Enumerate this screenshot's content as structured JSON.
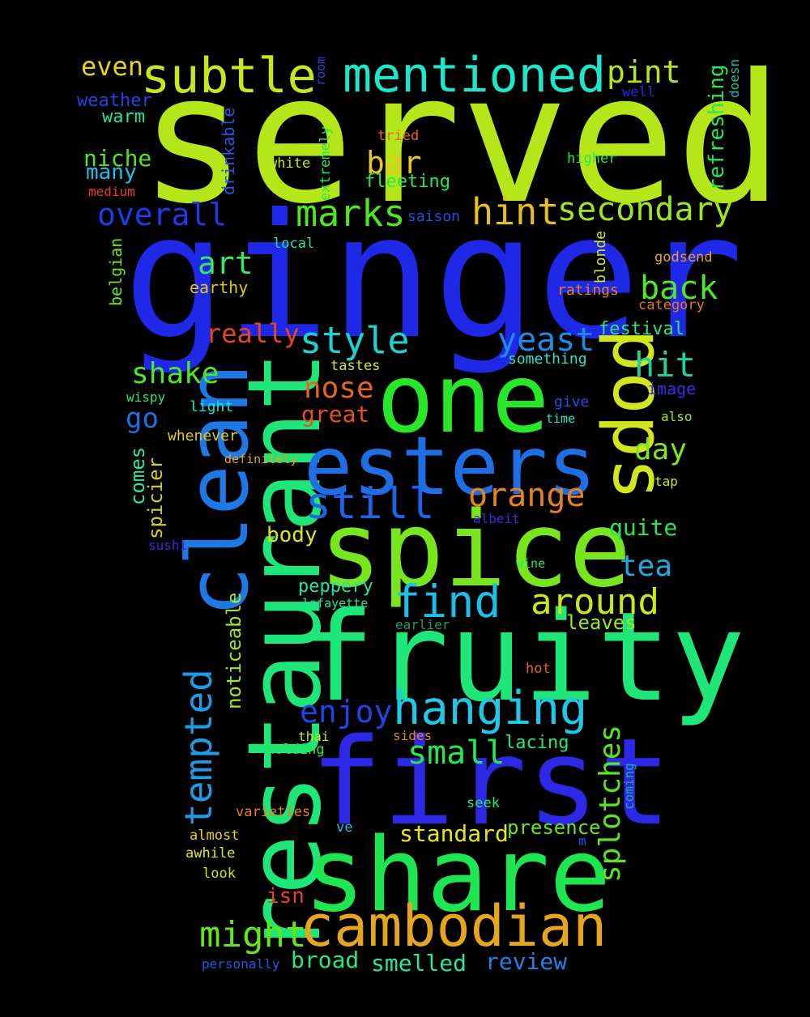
{
  "cloud": {
    "background": "#000000",
    "words": [
      {
        "text": "served",
        "color": "#b4e61a"
      },
      {
        "text": "ginger",
        "color": "#1e28e6"
      },
      {
        "text": "restaurant",
        "color": "#1ee678"
      },
      {
        "text": "first",
        "color": "#2d28e6"
      },
      {
        "text": "fruity",
        "color": "#1ee678"
      },
      {
        "text": "clean",
        "color": "#1e78e6"
      },
      {
        "text": "one",
        "color": "#28e628"
      },
      {
        "text": "spice",
        "color": "#78e61e"
      },
      {
        "text": "share",
        "color": "#1ee650"
      },
      {
        "text": "esters",
        "color": "#1e6ee6"
      },
      {
        "text": "pops",
        "color": "#d2e61e"
      },
      {
        "text": "cambodian",
        "color": "#e6a51e"
      },
      {
        "text": "mentioned",
        "color": "#1ee6c8"
      },
      {
        "text": "subtle",
        "color": "#c8e61e"
      },
      {
        "text": "hanging",
        "color": "#1ec8e6"
      },
      {
        "text": "tempted",
        "color": "#1e9be6"
      },
      {
        "text": "find",
        "color": "#1ebee6"
      },
      {
        "text": "still",
        "color": "#1e64e6"
      },
      {
        "text": "marks",
        "color": "#50e61e"
      },
      {
        "text": "hint",
        "color": "#e6be1e"
      },
      {
        "text": "secondary",
        "color": "#a0e61e"
      },
      {
        "text": "style",
        "color": "#1ed2d2"
      },
      {
        "text": "orange",
        "color": "#e6821e"
      },
      {
        "text": "around",
        "color": "#c8e61e"
      },
      {
        "text": "might",
        "color": "#64e61e"
      },
      {
        "text": "splotches",
        "color": "#5ae61e"
      },
      {
        "text": "small",
        "color": "#28e650"
      },
      {
        "text": "enjoy",
        "color": "#1e46e6"
      },
      {
        "text": "yeast",
        "color": "#1e8ce6"
      },
      {
        "text": "overall",
        "color": "#1e3ce6"
      },
      {
        "text": "shake",
        "color": "#50e628"
      },
      {
        "text": "back",
        "color": "#50e628"
      },
      {
        "text": "hit",
        "color": "#1ed2a0"
      },
      {
        "text": "nose",
        "color": "#e6641e"
      },
      {
        "text": "pint",
        "color": "#b4e61e"
      },
      {
        "text": "art",
        "color": "#3ce664"
      },
      {
        "text": "bar",
        "color": "#e6c81e"
      },
      {
        "text": "day",
        "color": "#82e61e"
      },
      {
        "text": "go",
        "color": "#1e6ee6"
      },
      {
        "text": "even",
        "color": "#e6d21e"
      },
      {
        "text": "refreshing",
        "color": "#28e650"
      },
      {
        "text": "really",
        "color": "#e6461e"
      },
      {
        "text": "tea",
        "color": "#1eaae6"
      },
      {
        "text": "standard",
        "color": "#e6e61e"
      },
      {
        "text": "review",
        "color": "#1e82e6"
      },
      {
        "text": "broad",
        "color": "#28e678"
      },
      {
        "text": "smelled",
        "color": "#28e6a0"
      },
      {
        "text": "noticeable",
        "color": "#a0e61e"
      },
      {
        "text": "spicier",
        "color": "#d2d21e"
      },
      {
        "text": "comes",
        "color": "#28e6a0"
      },
      {
        "text": "quite",
        "color": "#28e650"
      },
      {
        "text": "great",
        "color": "#e6501e"
      },
      {
        "text": "body",
        "color": "#dce61e"
      },
      {
        "text": "niche",
        "color": "#50e628"
      },
      {
        "text": "many",
        "color": "#1ebee6"
      },
      {
        "text": "isn",
        "color": "#e6461e"
      },
      {
        "text": "presence",
        "color": "#64e61e"
      },
      {
        "text": "leaves",
        "color": "#a0e61e"
      },
      {
        "text": "peppery",
        "color": "#1ee6aa"
      },
      {
        "text": "festival",
        "color": "#28e678"
      },
      {
        "text": "drinkable",
        "color": "#1e5ae6"
      },
      {
        "text": "weather",
        "color": "#1e46e6"
      },
      {
        "text": "warm",
        "color": "#1ee6a0"
      },
      {
        "text": "fleeting",
        "color": "#28e650"
      },
      {
        "text": "lacing",
        "color": "#28e678"
      },
      {
        "text": "earthy",
        "color": "#dcc81e"
      },
      {
        "text": "belgian",
        "color": "#6ee61e"
      },
      {
        "text": "blonde",
        "color": "#d2e61e"
      },
      {
        "text": "extremely",
        "color": "#28e650"
      },
      {
        "text": "saison",
        "color": "#1e50e6"
      },
      {
        "text": "coming",
        "color": "#1eaaa0"
      },
      {
        "text": "light",
        "color": "#1ee6c8"
      },
      {
        "text": "whenever",
        "color": "#e6c81e"
      },
      {
        "text": "something",
        "color": "#28e6c8"
      },
      {
        "text": "tastes",
        "color": "#dce61e"
      },
      {
        "text": "image",
        "color": "#3c28e6"
      },
      {
        "text": "give",
        "color": "#1e50e6"
      },
      {
        "text": "ratings",
        "color": "#e6821e"
      },
      {
        "text": "category",
        "color": "#e6781e"
      },
      {
        "text": "godsend",
        "color": "#e6a01e"
      },
      {
        "text": "local",
        "color": "#1ee6aa"
      },
      {
        "text": "white",
        "color": "#c8e61e"
      },
      {
        "text": "tried",
        "color": "#e6641e"
      },
      {
        "text": "higher",
        "color": "#28e650"
      },
      {
        "text": "well",
        "color": "#1e28e6"
      },
      {
        "text": "doesn",
        "color": "#1ebea0"
      },
      {
        "text": "room",
        "color": "#1e46e6"
      },
      {
        "text": "medium",
        "color": "#e63c1e"
      },
      {
        "text": "wispy",
        "color": "#28e678"
      },
      {
        "text": "time",
        "color": "#1ee6c8"
      },
      {
        "text": "also",
        "color": "#a0e61e"
      },
      {
        "text": "definitely",
        "color": "#e6a01e"
      },
      {
        "text": "tap",
        "color": "#c8e61e"
      },
      {
        "text": "albeit",
        "color": "#3c28e6"
      },
      {
        "text": "sushi",
        "color": "#3c28e6"
      },
      {
        "text": "wine",
        "color": "#28e650"
      },
      {
        "text": "lafayette",
        "color": "#1ee6a0"
      },
      {
        "text": "earlier",
        "color": "#1ea064"
      },
      {
        "text": "hot",
        "color": "#e6641e"
      },
      {
        "text": "thai",
        "color": "#c8e61e"
      },
      {
        "text": "sides",
        "color": "#e6821e"
      },
      {
        "text": "holding",
        "color": "#28e650"
      },
      {
        "text": "seek",
        "color": "#28e678"
      },
      {
        "text": "varieties",
        "color": "#e6821e"
      },
      {
        "text": "almost",
        "color": "#e6d21e"
      },
      {
        "text": "ve",
        "color": "#1ebee6"
      },
      {
        "text": "m",
        "color": "#1e50e6"
      },
      {
        "text": "awhile",
        "color": "#e6e61e"
      },
      {
        "text": "look",
        "color": "#c8e61e"
      },
      {
        "text": "personally",
        "color": "#1e5ae6"
      }
    ]
  }
}
